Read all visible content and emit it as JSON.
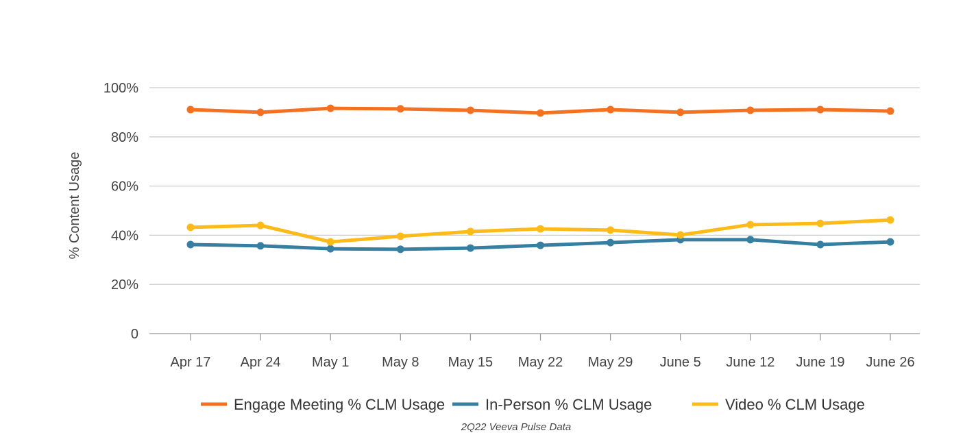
{
  "chart_data": {
    "type": "line",
    "title": "",
    "xlabel": "",
    "ylabel": "% Content Usage",
    "ylim": [
      0,
      100
    ],
    "yticks": [
      "0",
      "20%",
      "40%",
      "60%",
      "80%",
      "100%"
    ],
    "ytick_values": [
      0,
      20,
      40,
      60,
      80,
      100
    ],
    "grid": true,
    "legend_position": "bottom",
    "categories": [
      "Apr 17",
      "Apr 24",
      "May 1",
      "May 8",
      "May 15",
      "May 22",
      "May 29",
      "June 5",
      "June 12",
      "June 19",
      "June 26"
    ],
    "series": [
      {
        "name": "Engage Meeting % CLM Usage",
        "color": "#F47121",
        "values": [
          91.1,
          90.0,
          91.6,
          91.4,
          90.8,
          89.7,
          91.1,
          90.0,
          90.8,
          91.1,
          90.5
        ]
      },
      {
        "name": "In-Person % CLM Usage",
        "color": "#367FA1",
        "values": [
          36.2,
          35.7,
          34.5,
          34.3,
          34.8,
          35.9,
          37.0,
          38.2,
          38.2,
          36.2,
          37.3
        ]
      },
      {
        "name": "Video % CLM Usage",
        "color": "#FDBB19",
        "values": [
          43.2,
          44.0,
          37.3,
          39.6,
          41.5,
          42.6,
          42.1,
          40.1,
          44.3,
          44.8,
          46.2
        ]
      }
    ],
    "source": "2Q22 Veeva Pulse Data"
  }
}
